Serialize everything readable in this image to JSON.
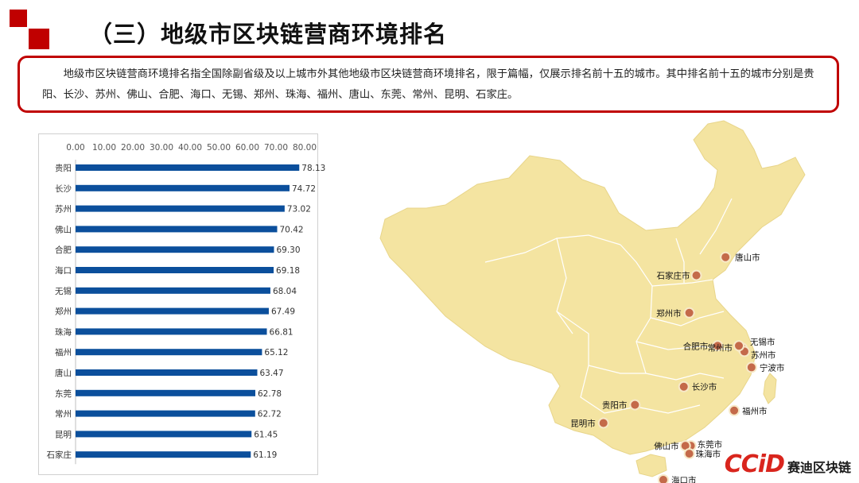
{
  "title": "（三）地级市区块链营商环境排名",
  "description": "地级市区块链营商环境排名指全国除副省级及以上城市外其他地级市区块链营商环境排名，限于篇幅，仅展示排名前十五的城市。其中排名前十五的城市分别是贵阳、长沙、苏州、佛山、合肥、海口、无锡、郑州、珠海、福州、唐山、东莞、常州、昆明、石家庄。",
  "colors": {
    "accent_red": "#c00000",
    "bar_blue": "#0b4f9c",
    "map_fill": "#f4e4a1",
    "marker": "#c46a4a"
  },
  "chart_data": {
    "type": "bar",
    "orientation": "horizontal",
    "categories": [
      "贵阳",
      "长沙",
      "苏州",
      "佛山",
      "合肥",
      "海口",
      "无锡",
      "郑州",
      "珠海",
      "福州",
      "唐山",
      "东莞",
      "常州",
      "昆明",
      "石家庄"
    ],
    "values": [
      78.13,
      74.72,
      73.02,
      70.42,
      69.3,
      69.18,
      68.04,
      67.49,
      66.81,
      65.12,
      63.47,
      62.78,
      62.72,
      61.45,
      61.19
    ],
    "value_labels": [
      "78.13",
      "74.72",
      "73.02",
      "70.42",
      "69.30",
      "69.18",
      "68.04",
      "67.49",
      "66.81",
      "65.12",
      "63.47",
      "62.78",
      "62.72",
      "61.45",
      "61.19"
    ],
    "xlim": [
      0,
      80
    ],
    "xticks": [
      "0.00",
      "10.00",
      "20.00",
      "30.00",
      "40.00",
      "50.00",
      "60.00",
      "70.00",
      "80.00"
    ],
    "axis_position": "top",
    "grid": false,
    "legend": "none"
  },
  "map": {
    "cities": [
      {
        "name": "唐山市",
        "lon": 118.2,
        "lat": 39.6
      },
      {
        "name": "石家庄市",
        "lon": 114.5,
        "lat": 38.0
      },
      {
        "name": "郑州市",
        "lon": 113.6,
        "lat": 34.7
      },
      {
        "name": "合肥市",
        "lon": 117.2,
        "lat": 31.8
      },
      {
        "name": "无锡市",
        "lon": 120.3,
        "lat": 31.6
      },
      {
        "name": "苏州市",
        "lon": 120.6,
        "lat": 31.3
      },
      {
        "name": "常州市",
        "lon": 119.9,
        "lat": 31.8
      },
      {
        "name": "宁波市",
        "lon": 121.5,
        "lat": 29.9
      },
      {
        "name": "长沙市",
        "lon": 112.9,
        "lat": 28.2
      },
      {
        "name": "福州市",
        "lon": 119.3,
        "lat": 26.1
      },
      {
        "name": "贵阳市",
        "lon": 106.7,
        "lat": 26.6
      },
      {
        "name": "昆明市",
        "lon": 102.7,
        "lat": 25.0
      },
      {
        "name": "东莞市",
        "lon": 113.8,
        "lat": 23.0
      },
      {
        "name": "佛山市",
        "lon": 113.1,
        "lat": 23.0
      },
      {
        "name": "珠海市",
        "lon": 113.6,
        "lat": 22.3
      },
      {
        "name": "海口市",
        "lon": 110.3,
        "lat": 20.0
      }
    ]
  },
  "logo": {
    "mark": "CCiD",
    "text": "赛迪区块链"
  }
}
